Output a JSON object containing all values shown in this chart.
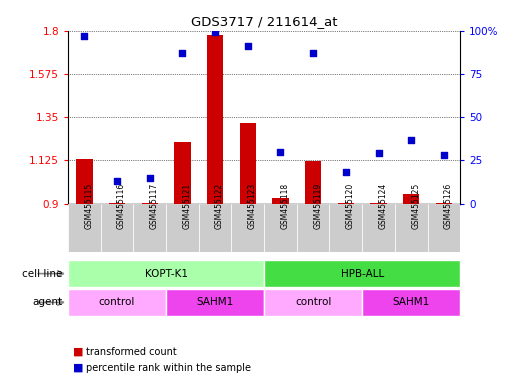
{
  "title": "GDS3717 / 211614_at",
  "samples": [
    "GSM455115",
    "GSM455116",
    "GSM455117",
    "GSM455121",
    "GSM455122",
    "GSM455123",
    "GSM455118",
    "GSM455119",
    "GSM455120",
    "GSM455124",
    "GSM455125",
    "GSM455126"
  ],
  "transformed_counts": [
    1.13,
    0.905,
    0.905,
    1.22,
    1.78,
    1.32,
    0.93,
    1.12,
    0.905,
    0.905,
    0.95,
    0.905
  ],
  "percentile_ranks": [
    97,
    13,
    15,
    87,
    99,
    91,
    30,
    87,
    18,
    29,
    37,
    28
  ],
  "ylim_left": [
    0.9,
    1.8
  ],
  "ylim_right": [
    0,
    100
  ],
  "yticks_left": [
    0.9,
    1.125,
    1.35,
    1.575,
    1.8
  ],
  "yticks_right": [
    0,
    25,
    50,
    75,
    100
  ],
  "ytick_labels_left": [
    "0.9",
    "1.125",
    "1.35",
    "1.575",
    "1.8"
  ],
  "ytick_labels_right": [
    "0",
    "25",
    "50",
    "75",
    "100%"
  ],
  "bar_color": "#cc0000",
  "dot_color": "#0000cc",
  "bar_width": 0.5,
  "cell_line_groups": [
    {
      "label": "KOPT-K1",
      "start": 0,
      "end": 6,
      "color": "#aaffaa"
    },
    {
      "label": "HPB-ALL",
      "start": 6,
      "end": 12,
      "color": "#44dd44"
    }
  ],
  "agent_groups": [
    {
      "label": "control",
      "start": 0,
      "end": 3,
      "color": "#ffaaff"
    },
    {
      "label": "SAHM1",
      "start": 3,
      "end": 6,
      "color": "#ee44ee"
    },
    {
      "label": "control",
      "start": 6,
      "end": 9,
      "color": "#ffaaff"
    },
    {
      "label": "SAHM1",
      "start": 9,
      "end": 12,
      "color": "#ee44ee"
    }
  ],
  "legend_items": [
    {
      "label": "transformed count",
      "color": "#cc0000"
    },
    {
      "label": "percentile rank within the sample",
      "color": "#0000cc"
    }
  ],
  "cell_line_label": "cell line",
  "agent_label": "agent",
  "xtick_bg": "#cccccc"
}
